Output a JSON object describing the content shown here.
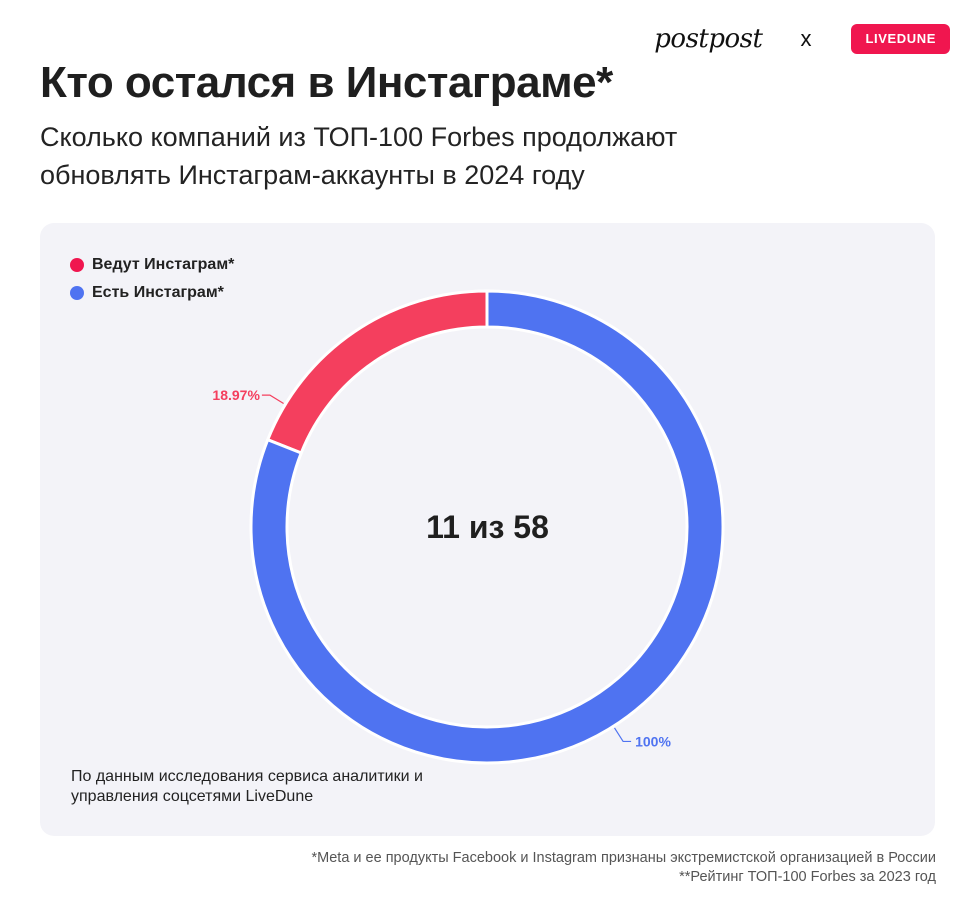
{
  "brands": {
    "left": "postpost",
    "separator": "x",
    "right": "LIVEDUNE"
  },
  "header": {
    "title": "Кто остался в Инстаграме*",
    "subtitle": "Сколько компаний из ТОП-100 Forbes продолжают обновлять Инстаграм-аккаунты в 2024 году"
  },
  "chart_data": {
    "type": "pie",
    "variant": "donut",
    "center_label": "11 из 58",
    "legend_placement": "top-left",
    "series": [
      {
        "name": "Ведут Инстаграм*",
        "share": 18.97,
        "count": 11,
        "label": "18.97%",
        "color": "#f43f5e"
      },
      {
        "name": "Есть Инстаграм*",
        "share": 81.03,
        "count": 58,
        "label": "100%",
        "color": "#4f73f1"
      }
    ]
  },
  "colors": {
    "legend_red": "#f0164f",
    "legend_blue": "#4f73f1",
    "panel_bg": "#f3f3f8"
  },
  "source_note": "По данным исследования сервиса аналитики и управления соцсетями LiveDune",
  "footnotes": [
    "*Meta и ее продукты Facebook и Instagram признаны экстремистской организацией в России",
    "**Рейтинг ТОП-100 Forbes за 2023 год"
  ]
}
